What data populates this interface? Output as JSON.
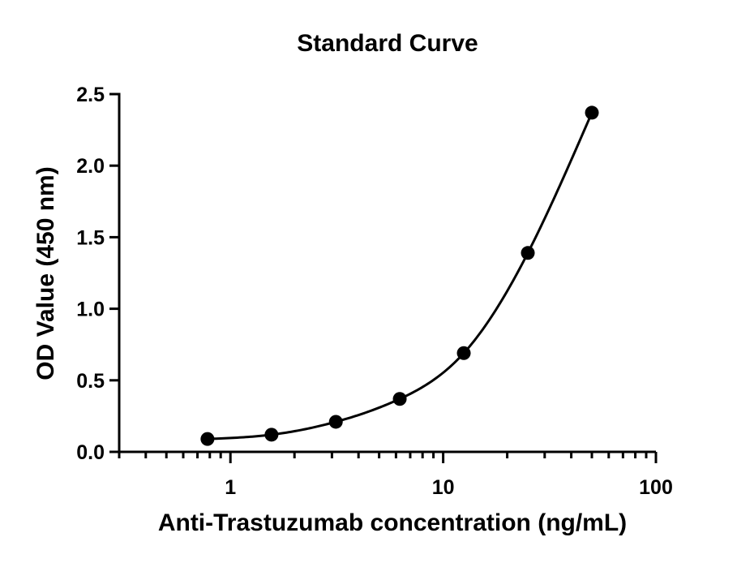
{
  "chart_data": {
    "type": "scatter",
    "title": "Standard Curve",
    "xlabel": "Anti-Trastuzumab concentration (ng/mL)",
    "ylabel": "OD Value (450 nm)",
    "x_scale": "log",
    "xlim": [
      0.3,
      100
    ],
    "ylim": [
      0,
      2.5
    ],
    "x_major_ticks": [
      1,
      10,
      100
    ],
    "x_major_tick_labels": [
      "1",
      "10",
      "100"
    ],
    "y_ticks": [
      0,
      0.5,
      1.0,
      1.5,
      2.0,
      2.5
    ],
    "y_tick_labels": [
      "0.0",
      "0.5",
      "1.0",
      "1.5",
      "2.0",
      "2.5"
    ],
    "grid": false,
    "series": [
      {
        "x": [
          0.78,
          1.56,
          3.13,
          6.25,
          12.5,
          25,
          50
        ],
        "y": [
          0.09,
          0.12,
          0.21,
          0.37,
          0.69,
          1.39,
          2.37
        ],
        "color": "#000000",
        "marker": "circle",
        "fit_curve": true
      }
    ]
  }
}
